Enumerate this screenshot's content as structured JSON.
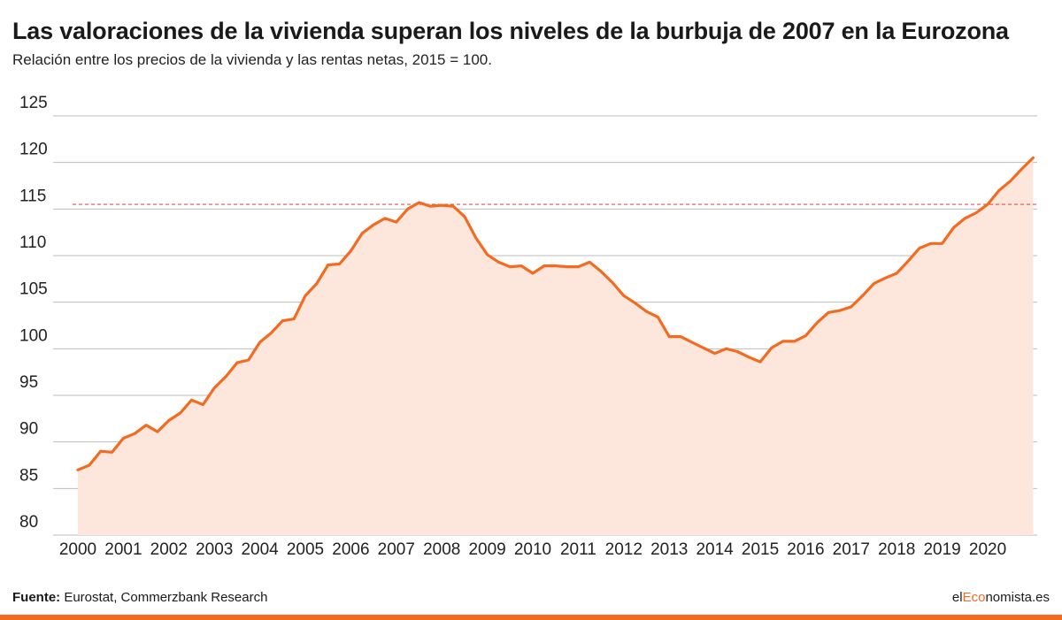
{
  "header": {
    "title": "Las valoraciones de la vivienda superan los niveles de la burbuja de 2007 en la Eurozona",
    "subtitle": "Relación entre los precios de la vivienda y las rentas netas, 2015 = 100."
  },
  "footer": {
    "source_label": "Fuente:",
    "source_text": " Eurostat, Commerzbank Research",
    "brand_prefix": "el",
    "brand_accent": "Eco",
    "brand_suffix": "nomista.es"
  },
  "colors": {
    "line": "#f26b21",
    "area": "#fde6dc",
    "grid": "#bdbdbd",
    "reference": "#d9534f",
    "brand": "#f26b21"
  },
  "chart_data": {
    "type": "area",
    "title": "",
    "xlabel": "",
    "ylabel": "",
    "ylim": [
      80,
      125
    ],
    "yticks": [
      80,
      85,
      90,
      95,
      100,
      105,
      110,
      115,
      120,
      125
    ],
    "xticks": [
      "2000",
      "2001",
      "2002",
      "2003",
      "2004",
      "2005",
      "2006",
      "2007",
      "2008",
      "2009",
      "2010",
      "2011",
      "2012",
      "2013",
      "2014",
      "2015",
      "2016",
      "2017",
      "2018",
      "2019",
      "2020"
    ],
    "xlim": [
      2000,
      2021.05
    ],
    "grid": true,
    "reference_line": {
      "value": 115.5,
      "style": "dashed"
    },
    "series": [
      {
        "x": [
          2000.0,
          2000.25,
          2000.5,
          2000.75,
          2001.0,
          2001.25,
          2001.5,
          2001.75,
          2002.0,
          2002.25,
          2002.5,
          2002.75,
          2003.0,
          2003.25,
          2003.5,
          2003.75,
          2004.0,
          2004.25,
          2004.5,
          2004.75,
          2005.0,
          2005.25,
          2005.5,
          2005.75,
          2006.0,
          2006.25,
          2006.5,
          2006.75,
          2007.0,
          2007.25,
          2007.5,
          2007.75,
          2008.0,
          2008.25,
          2008.5,
          2008.75,
          2009.0,
          2009.25,
          2009.5,
          2009.75,
          2010.0,
          2010.25,
          2010.5,
          2010.75,
          2011.0,
          2011.25,
          2011.5,
          2011.75,
          2012.0,
          2012.25,
          2012.5,
          2012.75,
          2013.0,
          2013.25,
          2013.5,
          2013.75,
          2014.0,
          2014.25,
          2014.5,
          2014.75,
          2015.0,
          2015.25,
          2015.5,
          2015.75,
          2016.0,
          2016.25,
          2016.5,
          2016.75,
          2017.0,
          2017.25,
          2017.5,
          2017.75,
          2018.0,
          2018.25,
          2018.5,
          2018.75,
          2019.0,
          2019.25,
          2019.5,
          2019.75,
          2020.0,
          2020.25,
          2020.5,
          2020.75,
          2021.0
        ],
        "values": [
          87.0,
          87.5,
          89.0,
          88.9,
          90.4,
          90.9,
          91.8,
          91.1,
          92.3,
          93.1,
          94.5,
          94.0,
          95.8,
          97.0,
          98.5,
          98.8,
          100.7,
          101.7,
          103.0,
          103.2,
          105.7,
          107.0,
          109.0,
          109.1,
          110.5,
          112.4,
          113.3,
          114.0,
          113.6,
          115.0,
          115.7,
          115.3,
          115.4,
          115.3,
          114.2,
          111.9,
          110.1,
          109.3,
          108.8,
          108.9,
          108.1,
          108.9,
          108.9,
          108.8,
          108.8,
          109.3,
          108.3,
          107.1,
          105.7,
          104.9,
          104.0,
          103.4,
          101.3,
          101.3,
          100.7,
          100.1,
          99.5,
          100.0,
          99.7,
          99.1,
          98.6,
          100.1,
          100.8,
          100.8,
          101.4,
          102.8,
          103.9,
          104.1,
          104.5,
          105.7,
          107.0,
          107.6,
          108.1,
          109.4,
          110.8,
          111.3,
          111.3,
          113.0,
          114.0,
          114.6,
          115.5,
          117.0,
          118.0,
          119.3,
          120.5
        ]
      }
    ]
  }
}
